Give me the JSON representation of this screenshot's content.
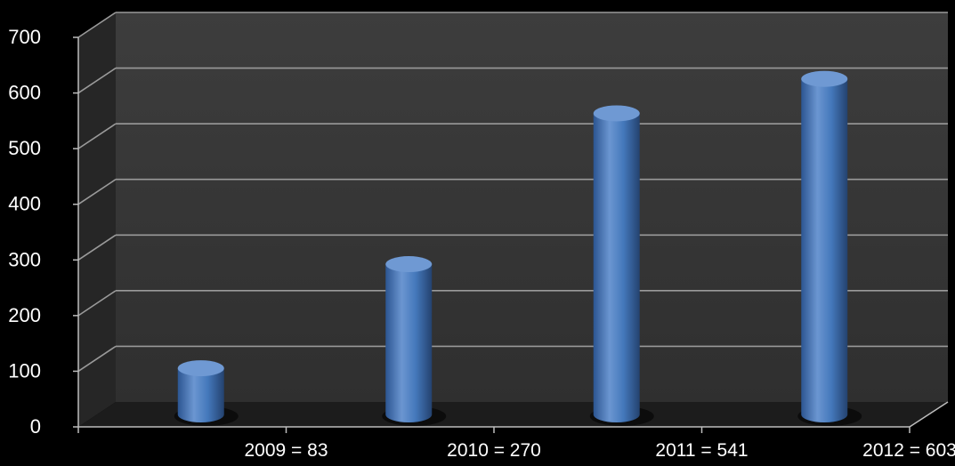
{
  "chart_data": {
    "type": "bar",
    "style": "3d-cylinder",
    "categories": [
      "2009 = 83",
      "2010 = 270",
      "2011 = 541",
      "2012 = 603"
    ],
    "series": [
      {
        "values": [
          83,
          270,
          541,
          603
        ]
      }
    ],
    "ylim": [
      0,
      700
    ],
    "yticks": [
      "0",
      "100",
      "200",
      "300",
      "400",
      "500",
      "600",
      "700"
    ],
    "grid": true,
    "legend": "none",
    "colors": {
      "background": "#000000",
      "plot_back_wall": "#3a3a3a",
      "plot_side_wall": "#262626",
      "plot_floor": "#1c1c1c",
      "gridline": "#9a9a9a",
      "bar": "#3f6fb0",
      "bar_highlight": "#6f99d3",
      "bar_shadow": "#24426f",
      "text": "#ffffff"
    }
  }
}
